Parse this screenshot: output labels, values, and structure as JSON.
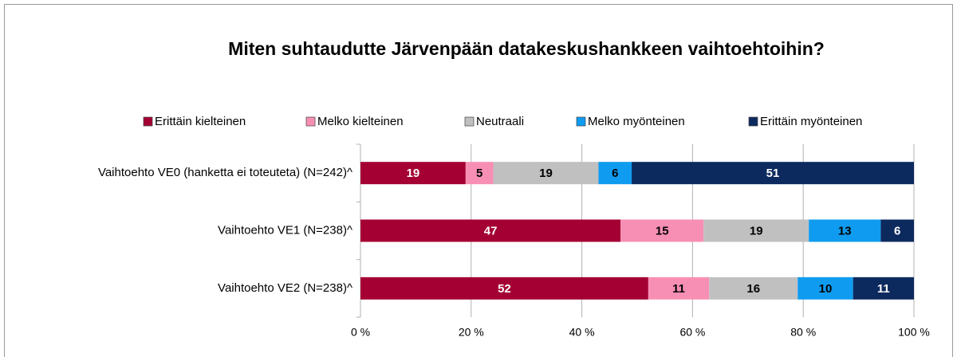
{
  "chart_data": {
    "type": "stacked_bar_horizontal",
    "title": "Miten suhtaudutte Järvenpään datakeskushankkeen vaihtoehtoihin?",
    "categories": [
      "Vaihtoehto VE0 (hanketta ei toteuteta) (N=242)^",
      "Vaihtoehto VE1 (N=238)^",
      "Vaihtoehto VE2 (N=238)^"
    ],
    "series": [
      {
        "name": "Erittäin kielteinen",
        "color": "#a50034",
        "values": [
          19,
          47,
          52
        ]
      },
      {
        "name": "Melko kielteinen",
        "color": "#f78fb4",
        "values": [
          5,
          15,
          11
        ]
      },
      {
        "name": "Neutraali",
        "color": "#c0c0c0",
        "values": [
          19,
          19,
          16
        ]
      },
      {
        "name": "Melko myönteinen",
        "color": "#0f9cf0",
        "values": [
          6,
          13,
          10
        ]
      },
      {
        "name": "Erittäin myönteinen",
        "color": "#0c2a5e",
        "values": [
          51,
          6,
          11
        ]
      }
    ],
    "xlim": [
      0,
      100
    ],
    "xticks": [
      {
        "value": 0,
        "label": "0 %"
      },
      {
        "value": 20,
        "label": "20 %"
      },
      {
        "value": 40,
        "label": "40 %"
      },
      {
        "value": 60,
        "label": "60 %"
      },
      {
        "value": 80,
        "label": "80 %"
      },
      {
        "value": 100,
        "label": "100 %"
      }
    ],
    "grid": true,
    "legend": "top"
  }
}
